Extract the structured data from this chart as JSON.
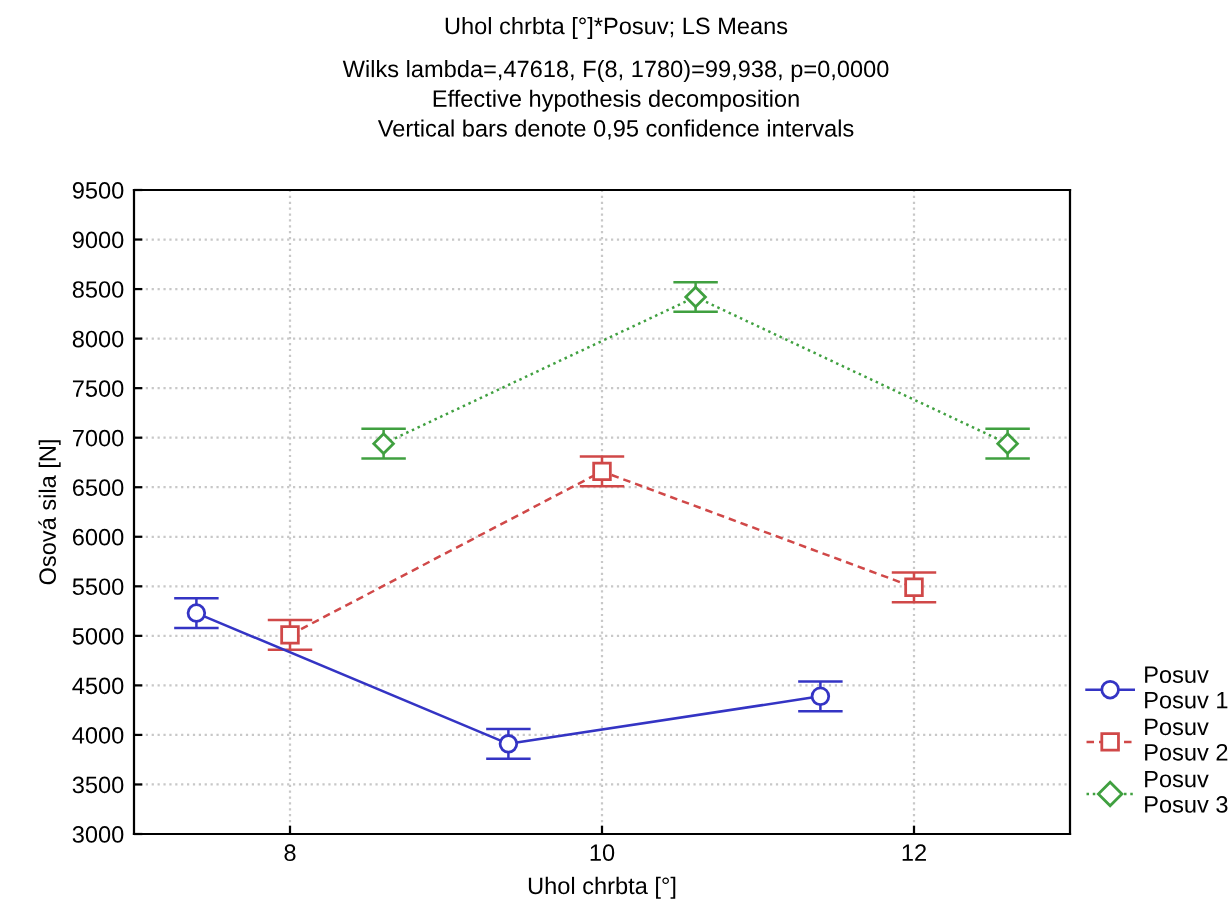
{
  "chart_data": {
    "type": "line",
    "title": "Uhol chrbta [°]*Posuv; LS Means",
    "subtitle": "Wilks lambda=,47618, F(8, 1780)=99,938, p=0,0000\nEffective hypothesis decomposition\nVertical bars denote 0,95 confidence intervals",
    "xlabel": "Uhol chrbta [°]",
    "ylabel": "Osová sila [N]",
    "categories": [
      "8",
      "10",
      "12"
    ],
    "ylim": [
      3000,
      9500
    ],
    "yticks": [
      3000,
      3500,
      4000,
      4500,
      5000,
      5500,
      6000,
      6500,
      7000,
      7500,
      8000,
      8500,
      9000,
      9500
    ],
    "grid": true,
    "legend": "bottom right",
    "series": [
      {
        "name": "Posuv\nPosuv 1",
        "color": "#3434c4",
        "marker": "circle",
        "line_style": "solid",
        "values": [
          5230,
          3910,
          4390
        ],
        "errors": [
          150,
          150,
          150
        ]
      },
      {
        "name": "Posuv\nPosuv 2",
        "color": "#d04848",
        "marker": "square",
        "line_style": "dashed",
        "values": [
          5010,
          6660,
          5490
        ],
        "errors": [
          150,
          150,
          150
        ]
      },
      {
        "name": "Posuv\nPosuv 3",
        "color": "#40a040",
        "marker": "diamond",
        "line_style": "dotted",
        "values": [
          6940,
          8420,
          6940
        ],
        "errors": [
          150,
          150,
          150
        ]
      }
    ]
  }
}
